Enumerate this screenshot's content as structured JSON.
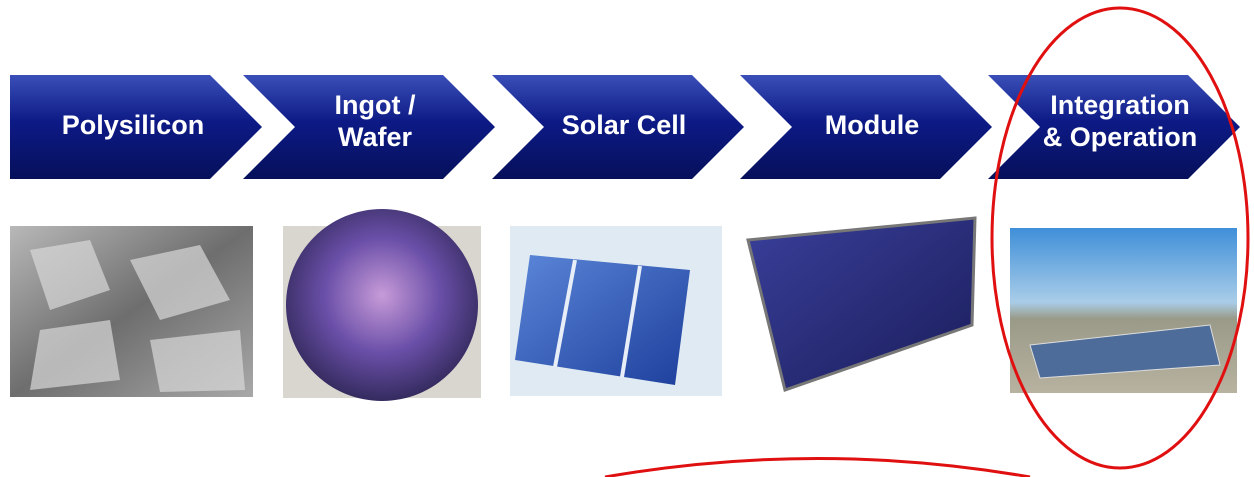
{
  "steps": [
    {
      "label": [
        "Polysilicon"
      ]
    },
    {
      "label": [
        "Ingot /",
        "Wafer"
      ]
    },
    {
      "label": [
        "Solar Cell"
      ]
    },
    {
      "label": [
        "Module"
      ]
    },
    {
      "label": [
        "Integration",
        "& Operation"
      ]
    }
  ]
}
